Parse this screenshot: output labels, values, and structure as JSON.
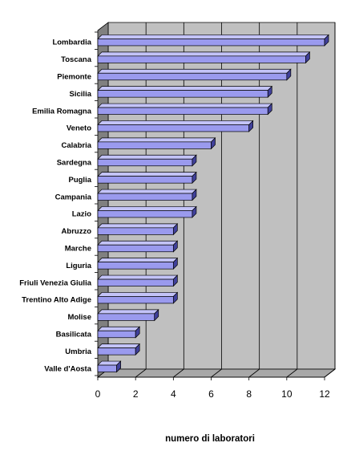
{
  "chart_data": {
    "type": "bar",
    "orientation": "horizontal",
    "style": "3d",
    "categories": [
      "Lombardia",
      "Toscana",
      "Piemonte",
      "Sicilia",
      "Emilia Romagna",
      "Veneto",
      "Calabria",
      "Sardegna",
      "Puglia",
      "Campania",
      "Lazio",
      "Abruzzo",
      "Marche",
      "Liguria",
      "Friuli Venezia Giulia",
      "Trentino Alto Adige",
      "Molise",
      "Basilicata",
      "Umbria",
      "Valle d'Aosta"
    ],
    "values": [
      12,
      11,
      10,
      9,
      9,
      8,
      6,
      5,
      5,
      5,
      5,
      4,
      4,
      4,
      4,
      4,
      3,
      2,
      2,
      1
    ],
    "xlabel": "numero di laboratori",
    "ylabel": "",
    "xlim": [
      0,
      12
    ],
    "xticks": [
      "0",
      "2",
      "4",
      "6",
      "8",
      "10",
      "12"
    ],
    "grid": true,
    "legend": "none",
    "colors": {
      "bar_front": "#9a9aee",
      "bar_top": "#c3c3f8",
      "bar_side": "#40409a",
      "wall": "#c0c0c0",
      "wall_side": "#808080",
      "floor": "#a8a8a8",
      "grid": "#000000"
    }
  }
}
